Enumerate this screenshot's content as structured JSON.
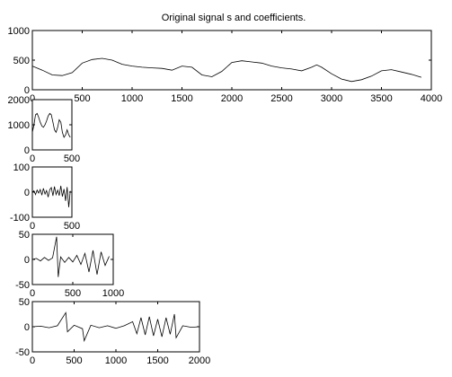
{
  "figure": {
    "title": "Original signal s and coefficients."
  },
  "chart_data": [
    {
      "id": "original-signal",
      "type": "line",
      "title": "Original signal s and coefficients.",
      "xlabel": "",
      "ylabel": "",
      "xlim": [
        0,
        4000
      ],
      "ylim": [
        0,
        1000
      ],
      "xticks": [
        0,
        500,
        1000,
        1500,
        2000,
        2500,
        3000,
        3500,
        4000
      ],
      "yticks": [
        0,
        500,
        1000
      ],
      "grid": false,
      "series": [
        {
          "x": [
            0,
            100,
            200,
            300,
            400,
            500,
            600,
            700,
            800,
            900,
            1000,
            1100,
            1200,
            1300,
            1400,
            1500,
            1600,
            1700,
            1800,
            1900,
            2000,
            2100,
            2200,
            2300,
            2400,
            2500,
            2600,
            2700,
            2800,
            2850,
            2900,
            3000,
            3100,
            3200,
            3300,
            3400,
            3500,
            3600,
            3700,
            3800,
            3900
          ],
          "y": [
            400,
            330,
            250,
            240,
            290,
            450,
            510,
            530,
            500,
            430,
            400,
            380,
            370,
            360,
            330,
            400,
            380,
            250,
            220,
            310,
            460,
            490,
            470,
            450,
            400,
            370,
            350,
            320,
            380,
            420,
            380,
            270,
            180,
            140,
            170,
            230,
            320,
            340,
            300,
            260,
            210
          ]
        }
      ]
    },
    {
      "id": "approximation-coefficients",
      "type": "line",
      "title": "",
      "xlabel": "",
      "ylabel": "",
      "xlim": [
        0,
        500
      ],
      "ylim": [
        0,
        2000
      ],
      "xticks": [
        0,
        500
      ],
      "yticks": [
        0,
        1000,
        2000
      ],
      "grid": false,
      "series": [
        {
          "x": [
            0,
            20,
            40,
            60,
            80,
            100,
            120,
            140,
            160,
            180,
            200,
            220,
            240,
            260,
            280,
            300,
            320,
            340,
            360,
            380,
            400,
            420,
            440,
            460,
            480
          ],
          "y": [
            700,
            1000,
            1400,
            1450,
            1300,
            1100,
            950,
            900,
            1000,
            1150,
            1350,
            1450,
            1400,
            1100,
            800,
            700,
            900,
            1200,
            1100,
            700,
            500,
            600,
            800,
            600,
            500
          ]
        }
      ]
    },
    {
      "id": "detail-coefficients-level-3",
      "type": "line",
      "title": "",
      "xlabel": "",
      "ylabel": "",
      "xlim": [
        0,
        500
      ],
      "ylim": [
        -100,
        100
      ],
      "xticks": [
        0,
        500
      ],
      "yticks": [
        -100,
        0,
        100
      ],
      "grid": false,
      "series": [
        {
          "x": [
            0,
            20,
            40,
            60,
            80,
            100,
            120,
            140,
            160,
            180,
            200,
            220,
            240,
            260,
            280,
            300,
            320,
            340,
            360,
            380,
            400,
            420,
            440,
            460,
            480
          ],
          "y": [
            0,
            5,
            -10,
            8,
            -4,
            10,
            -12,
            15,
            -8,
            6,
            -20,
            10,
            18,
            -15,
            22,
            -10,
            8,
            -14,
            25,
            -18,
            12,
            -35,
            20,
            -60,
            5
          ]
        }
      ]
    },
    {
      "id": "detail-coefficients-level-2",
      "type": "line",
      "title": "",
      "xlabel": "",
      "ylabel": "",
      "xlim": [
        0,
        1000
      ],
      "ylim": [
        -50,
        50
      ],
      "xticks": [
        0,
        500,
        1000
      ],
      "yticks": [
        -50,
        0,
        50
      ],
      "grid": false,
      "series": [
        {
          "x": [
            0,
            50,
            100,
            150,
            200,
            250,
            300,
            320,
            350,
            400,
            450,
            500,
            550,
            600,
            650,
            700,
            750,
            800,
            850,
            900,
            950
          ],
          "y": [
            0,
            2,
            -3,
            4,
            -2,
            3,
            45,
            -35,
            5,
            -6,
            4,
            -5,
            8,
            -10,
            12,
            -25,
            18,
            -30,
            15,
            -12,
            6
          ]
        }
      ]
    },
    {
      "id": "detail-coefficients-level-1",
      "type": "line",
      "title": "",
      "xlabel": "",
      "ylabel": "",
      "xlim": [
        0,
        2000
      ],
      "ylim": [
        -50,
        50
      ],
      "xticks": [
        0,
        500,
        1000,
        1500,
        2000
      ],
      "yticks": [
        -50,
        0,
        50
      ],
      "grid": false,
      "series": [
        {
          "x": [
            0,
            100,
            200,
            300,
            400,
            420,
            500,
            600,
            620,
            700,
            800,
            900,
            1000,
            1100,
            1200,
            1250,
            1300,
            1350,
            1400,
            1450,
            1500,
            1550,
            1600,
            1650,
            1700,
            1720,
            1800,
            1900,
            2000
          ],
          "y": [
            0,
            1,
            -2,
            2,
            28,
            -10,
            3,
            -4,
            -28,
            3,
            -2,
            2,
            -3,
            2,
            10,
            -14,
            18,
            -16,
            20,
            -18,
            15,
            -20,
            18,
            -15,
            25,
            -22,
            2,
            -1,
            0
          ]
        }
      ]
    }
  ]
}
